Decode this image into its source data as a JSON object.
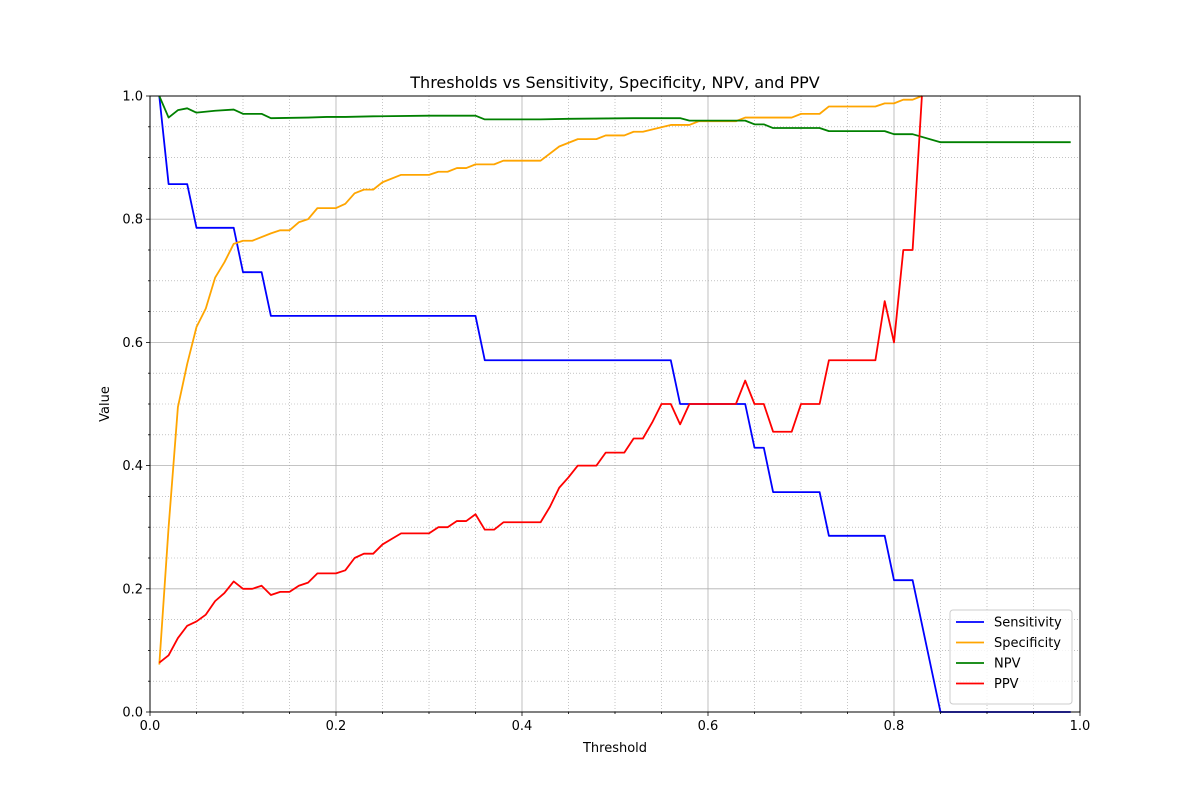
{
  "chart_data": {
    "type": "line",
    "title": "Thresholds vs Sensitivity, Specificity, NPV, and PPV",
    "xlabel": "Threshold",
    "ylabel": "Value",
    "xlim": [
      0,
      1
    ],
    "ylim": [
      0,
      1
    ],
    "x_ticks": [
      "0.0",
      "0.2",
      "0.4",
      "0.6",
      "0.8",
      "1.0"
    ],
    "y_ticks": [
      "0.0",
      "0.2",
      "0.4",
      "0.6",
      "0.8",
      "1.0"
    ],
    "grid": {
      "major": true,
      "minor": true
    },
    "legend": {
      "position": "lower-right"
    },
    "series": [
      {
        "name": "Sensitivity",
        "color": "#0000ff",
        "points": [
          [
            0.01,
            1.0
          ],
          [
            0.02,
            0.857
          ],
          [
            0.04,
            0.857
          ],
          [
            0.05,
            0.786
          ],
          [
            0.09,
            0.786
          ],
          [
            0.1,
            0.714
          ],
          [
            0.12,
            0.714
          ],
          [
            0.13,
            0.643
          ],
          [
            0.35,
            0.643
          ],
          [
            0.36,
            0.571
          ],
          [
            0.56,
            0.571
          ],
          [
            0.57,
            0.5
          ],
          [
            0.64,
            0.5
          ],
          [
            0.65,
            0.429
          ],
          [
            0.66,
            0.429
          ],
          [
            0.67,
            0.357
          ],
          [
            0.72,
            0.357
          ],
          [
            0.73,
            0.286
          ],
          [
            0.79,
            0.286
          ],
          [
            0.8,
            0.214
          ],
          [
            0.82,
            0.214
          ],
          [
            0.85,
            0.0
          ],
          [
            0.99,
            0.0
          ]
        ]
      },
      {
        "name": "Specificity",
        "color": "#ffa500",
        "points": [
          [
            0.01,
            0.077
          ],
          [
            0.02,
            0.3
          ],
          [
            0.03,
            0.495
          ],
          [
            0.04,
            0.565
          ],
          [
            0.05,
            0.625
          ],
          [
            0.06,
            0.655
          ],
          [
            0.07,
            0.705
          ],
          [
            0.08,
            0.73
          ],
          [
            0.09,
            0.76
          ],
          [
            0.1,
            0.765
          ],
          [
            0.11,
            0.765
          ],
          [
            0.13,
            0.777
          ],
          [
            0.14,
            0.782
          ],
          [
            0.15,
            0.782
          ],
          [
            0.16,
            0.795
          ],
          [
            0.17,
            0.8
          ],
          [
            0.18,
            0.818
          ],
          [
            0.2,
            0.818
          ],
          [
            0.21,
            0.825
          ],
          [
            0.22,
            0.842
          ],
          [
            0.23,
            0.848
          ],
          [
            0.24,
            0.848
          ],
          [
            0.25,
            0.86
          ],
          [
            0.27,
            0.872
          ],
          [
            0.3,
            0.872
          ],
          [
            0.31,
            0.877
          ],
          [
            0.32,
            0.877
          ],
          [
            0.33,
            0.883
          ],
          [
            0.34,
            0.883
          ],
          [
            0.35,
            0.889
          ],
          [
            0.37,
            0.889
          ],
          [
            0.38,
            0.895
          ],
          [
            0.42,
            0.895
          ],
          [
            0.44,
            0.918
          ],
          [
            0.46,
            0.93
          ],
          [
            0.48,
            0.93
          ],
          [
            0.49,
            0.936
          ],
          [
            0.51,
            0.936
          ],
          [
            0.52,
            0.942
          ],
          [
            0.53,
            0.942
          ],
          [
            0.56,
            0.953
          ],
          [
            0.58,
            0.953
          ],
          [
            0.59,
            0.959
          ],
          [
            0.63,
            0.959
          ],
          [
            0.64,
            0.965
          ],
          [
            0.69,
            0.965
          ],
          [
            0.7,
            0.971
          ],
          [
            0.72,
            0.971
          ],
          [
            0.73,
            0.983
          ],
          [
            0.78,
            0.983
          ],
          [
            0.79,
            0.988
          ],
          [
            0.8,
            0.988
          ],
          [
            0.81,
            0.994
          ],
          [
            0.82,
            0.994
          ],
          [
            0.83,
            1.0
          ]
        ]
      },
      {
        "name": "NPV",
        "color": "#008000",
        "points": [
          [
            0.01,
            1.0
          ],
          [
            0.02,
            0.965
          ],
          [
            0.03,
            0.977
          ],
          [
            0.04,
            0.98
          ],
          [
            0.05,
            0.973
          ],
          [
            0.07,
            0.976
          ],
          [
            0.09,
            0.978
          ],
          [
            0.1,
            0.971
          ],
          [
            0.12,
            0.971
          ],
          [
            0.13,
            0.964
          ],
          [
            0.17,
            0.965
          ],
          [
            0.19,
            0.966
          ],
          [
            0.21,
            0.966
          ],
          [
            0.24,
            0.967
          ],
          [
            0.3,
            0.968
          ],
          [
            0.35,
            0.968
          ],
          [
            0.36,
            0.962
          ],
          [
            0.42,
            0.962
          ],
          [
            0.45,
            0.963
          ],
          [
            0.52,
            0.964
          ],
          [
            0.57,
            0.964
          ],
          [
            0.58,
            0.96
          ],
          [
            0.63,
            0.96
          ],
          [
            0.64,
            0.96
          ],
          [
            0.65,
            0.954
          ],
          [
            0.66,
            0.954
          ],
          [
            0.67,
            0.948
          ],
          [
            0.72,
            0.948
          ],
          [
            0.73,
            0.943
          ],
          [
            0.79,
            0.943
          ],
          [
            0.8,
            0.938
          ],
          [
            0.82,
            0.938
          ],
          [
            0.85,
            0.925
          ],
          [
            0.99,
            0.925
          ]
        ]
      },
      {
        "name": "PPV",
        "color": "#ff0000",
        "points": [
          [
            0.01,
            0.08
          ],
          [
            0.02,
            0.092
          ],
          [
            0.03,
            0.12
          ],
          [
            0.04,
            0.14
          ],
          [
            0.05,
            0.147
          ],
          [
            0.06,
            0.158
          ],
          [
            0.07,
            0.18
          ],
          [
            0.08,
            0.193
          ],
          [
            0.09,
            0.212
          ],
          [
            0.1,
            0.2
          ],
          [
            0.11,
            0.2
          ],
          [
            0.12,
            0.205
          ],
          [
            0.13,
            0.19
          ],
          [
            0.14,
            0.195
          ],
          [
            0.15,
            0.195
          ],
          [
            0.16,
            0.205
          ],
          [
            0.17,
            0.21
          ],
          [
            0.18,
            0.225
          ],
          [
            0.2,
            0.225
          ],
          [
            0.21,
            0.23
          ],
          [
            0.22,
            0.25
          ],
          [
            0.23,
            0.257
          ],
          [
            0.24,
            0.257
          ],
          [
            0.25,
            0.272
          ],
          [
            0.26,
            0.281
          ],
          [
            0.27,
            0.29
          ],
          [
            0.3,
            0.29
          ],
          [
            0.31,
            0.3
          ],
          [
            0.32,
            0.3
          ],
          [
            0.33,
            0.31
          ],
          [
            0.34,
            0.31
          ],
          [
            0.35,
            0.321
          ],
          [
            0.36,
            0.296
          ],
          [
            0.37,
            0.296
          ],
          [
            0.38,
            0.308
          ],
          [
            0.42,
            0.308
          ],
          [
            0.43,
            0.333
          ],
          [
            0.44,
            0.364
          ],
          [
            0.45,
            0.381
          ],
          [
            0.46,
            0.4
          ],
          [
            0.48,
            0.4
          ],
          [
            0.49,
            0.421
          ],
          [
            0.51,
            0.421
          ],
          [
            0.52,
            0.444
          ],
          [
            0.53,
            0.444
          ],
          [
            0.54,
            0.47
          ],
          [
            0.55,
            0.5
          ],
          [
            0.56,
            0.5
          ],
          [
            0.57,
            0.467
          ],
          [
            0.58,
            0.5
          ],
          [
            0.63,
            0.5
          ],
          [
            0.64,
            0.538
          ],
          [
            0.65,
            0.5
          ],
          [
            0.66,
            0.5
          ],
          [
            0.67,
            0.455
          ],
          [
            0.69,
            0.455
          ],
          [
            0.7,
            0.5
          ],
          [
            0.72,
            0.5
          ],
          [
            0.73,
            0.571
          ],
          [
            0.78,
            0.571
          ],
          [
            0.79,
            0.667
          ],
          [
            0.8,
            0.6
          ],
          [
            0.81,
            0.75
          ],
          [
            0.82,
            0.75
          ],
          [
            0.83,
            1.0
          ]
        ]
      }
    ]
  }
}
